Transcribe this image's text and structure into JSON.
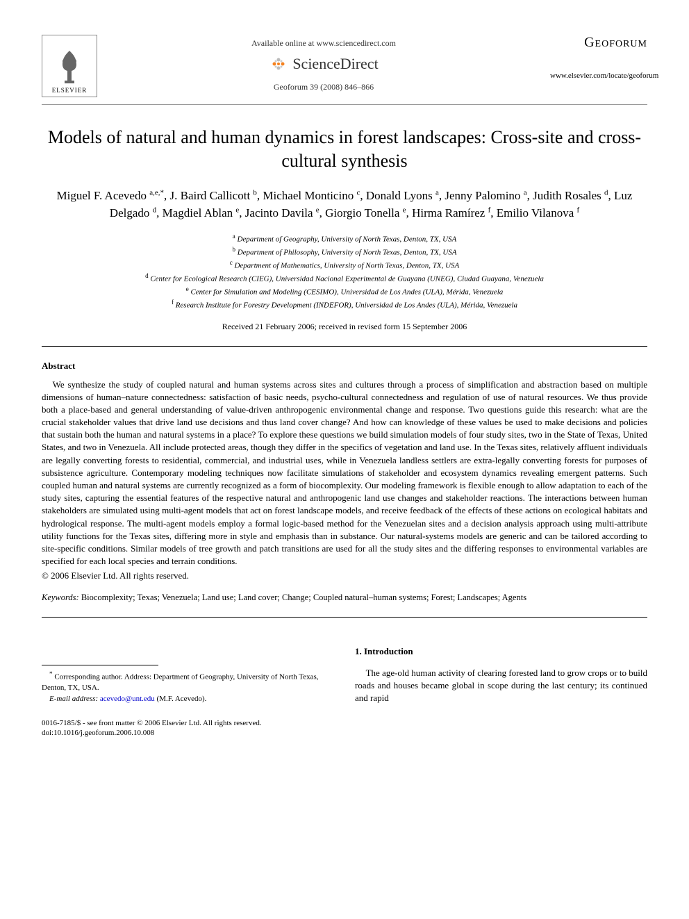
{
  "header": {
    "publisher": "ELSEVIER",
    "available_online": "Available online at www.sciencedirect.com",
    "sciencedirect": "ScienceDirect",
    "journal_ref": "Geoforum 39 (2008) 846–866",
    "journal_name": "Geoforum",
    "journal_url": "www.elsevier.com/locate/geoforum"
  },
  "title": "Models of natural and human dynamics in forest landscapes: Cross-site and cross-cultural synthesis",
  "authors_html": "Miguel F. Acevedo <sup>a,e,*</sup>, J. Baird Callicott <sup>b</sup>, Michael Monticino <sup>c</sup>, Donald Lyons <sup>a</sup>, Jenny Palomino <sup>a</sup>, Judith Rosales <sup>d</sup>, Luz Delgado <sup>d</sup>, Magdiel Ablan <sup>e</sup>, Jacinto Davila <sup>e</sup>, Giorgio Tonella <sup>e</sup>, Hirma Ramírez <sup>f</sup>, Emilio Vilanova <sup>f</sup>",
  "affiliations": [
    {
      "sup": "a",
      "text": "Department of Geography, University of North Texas, Denton, TX, USA"
    },
    {
      "sup": "b",
      "text": "Department of Philosophy, University of North Texas, Denton, TX, USA"
    },
    {
      "sup": "c",
      "text": "Department of Mathematics, University of North Texas, Denton, TX, USA"
    },
    {
      "sup": "d",
      "text": "Center for Ecological Research (CIEG), Universidad Nacional Experimental de Guayana (UNEG), Ciudad Guayana, Venezuela"
    },
    {
      "sup": "e",
      "text": "Center for Simulation and Modeling (CESIMO), Universidad de Los Andes (ULA), Mérida, Venezuela"
    },
    {
      "sup": "f",
      "text": "Research Institute for Forestry Development (INDEFOR), Universidad de Los Andes (ULA), Mérida, Venezuela"
    }
  ],
  "dates": "Received 21 February 2006; received in revised form 15 September 2006",
  "abstract": {
    "heading": "Abstract",
    "body": "We synthesize the study of coupled natural and human systems across sites and cultures through a process of simplification and abstraction based on multiple dimensions of human–nature connectedness: satisfaction of basic needs, psycho-cultural connectedness and regulation of use of natural resources. We thus provide both a place-based and general understanding of value-driven anthropogenic environmental change and response. Two questions guide this research: what are the crucial stakeholder values that drive land use decisions and thus land cover change? And how can knowledge of these values be used to make decisions and policies that sustain both the human and natural systems in a place? To explore these questions we build simulation models of four study sites, two in the State of Texas, United States, and two in Venezuela. All include protected areas, though they differ in the specifics of vegetation and land use. In the Texas sites, relatively affluent individuals are legally converting forests to residential, commercial, and industrial uses, while in Venezuela landless settlers are extra-legally converting forests for purposes of subsistence agriculture. Contemporary modeling techniques now facilitate simulations of stakeholder and ecosystem dynamics revealing emergent patterns. Such coupled human and natural systems are currently recognized as a form of biocomplexity. Our modeling framework is flexible enough to allow adaptation to each of the study sites, capturing the essential features of the respective natural and anthropogenic land use changes and stakeholder reactions. The interactions between human stakeholders are simulated using multi-agent models that act on forest landscape models, and receive feedback of the effects of these actions on ecological habitats and hydrological response. The multi-agent models employ a formal logic-based method for the Venezuelan sites and a decision analysis approach using multi-attribute utility functions for the Texas sites, differing more in style and emphasis than in substance. Our natural-systems models are generic and can be tailored according to site-specific conditions. Similar models of tree growth and patch transitions are used for all the study sites and the differing responses to environmental variables are specified for each local species and terrain conditions.",
    "copyright": "© 2006 Elsevier Ltd. All rights reserved."
  },
  "keywords": {
    "label": "Keywords:",
    "text": "Biocomplexity; Texas; Venezuela; Land use; Land cover; Change; Coupled natural–human systems; Forest; Landscapes; Agents"
  },
  "intro": {
    "heading": "1. Introduction",
    "body": "The age-old human activity of clearing forested land to grow crops or to build roads and houses became global in scope during the last century; its continued and rapid"
  },
  "footnote": {
    "corresponding": "Corresponding author. Address: Department of Geography, University of North Texas, Denton, TX, USA.",
    "email_label": "E-mail address:",
    "email": "acevedo@unt.edu",
    "email_attribution": "(M.F. Acevedo)."
  },
  "footer": {
    "front_matter": "0016-7185/$ - see front matter © 2006 Elsevier Ltd. All rights reserved.",
    "doi": "doi:10.1016/j.geoforum.2006.10.008"
  },
  "colors": {
    "text": "#000000",
    "link": "#0000cc",
    "rule": "#000000",
    "accent_orange": "#f58220",
    "sd_gray": "#888888"
  }
}
